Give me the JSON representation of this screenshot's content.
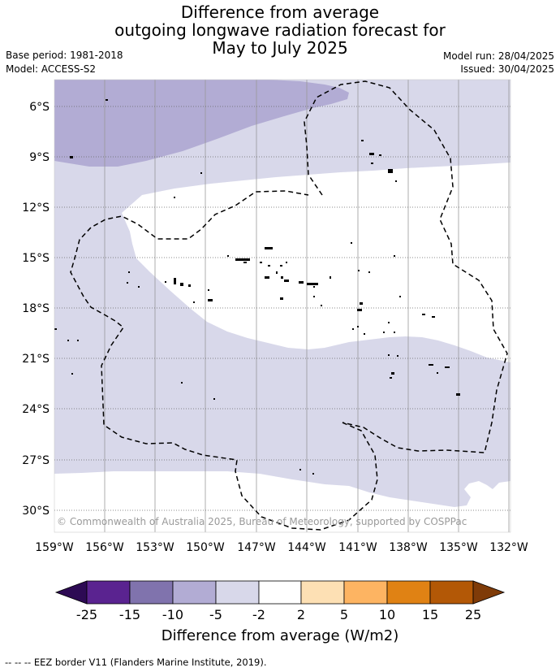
{
  "title": {
    "line1": "Difference from average",
    "line2": "outgoing longwave radiation forecast for",
    "line3": "May to July 2025"
  },
  "info_left": {
    "base_period": "Base period: 1981-2018",
    "model": "Model: ACCESS-S2"
  },
  "info_right": {
    "model_run": "Model run: 28/04/2025",
    "issued": "Issued: 30/04/2025"
  },
  "map": {
    "lat_labels": [
      "6°S",
      "9°S",
      "12°S",
      "15°S",
      "18°S",
      "21°S",
      "24°S",
      "27°S",
      "30°S"
    ],
    "lon_labels": [
      "159°W",
      "156°W",
      "153°W",
      "150°W",
      "147°W",
      "144°W",
      "141°W",
      "138°W",
      "135°W",
      "132°W"
    ],
    "copyright": "© Commonwealth of Australia 2025, Bureau of Meteorology, supported by COSPPac",
    "colors": {
      "neg_5_to_2": "#d8d8ea",
      "neg_10_to_5": "#b2acd4",
      "neutral": "#ffffff",
      "grid": "#999999"
    }
  },
  "colorbar": {
    "ticks": [
      "-25",
      "-15",
      "-10",
      "-5",
      "-2",
      "2",
      "5",
      "10",
      "15",
      "25"
    ],
    "colors": [
      "#2d0a54",
      "#5a2390",
      "#8073ad",
      "#b2acd4",
      "#d8d8ea",
      "#ffffff",
      "#fde0b4",
      "#fdb462",
      "#e08214",
      "#b35806",
      "#7f3b08"
    ],
    "label": "Difference from average (W/m2)"
  },
  "footer": "--  --  -- EEZ border V11 (Flanders Marine Institute, 2019)."
}
